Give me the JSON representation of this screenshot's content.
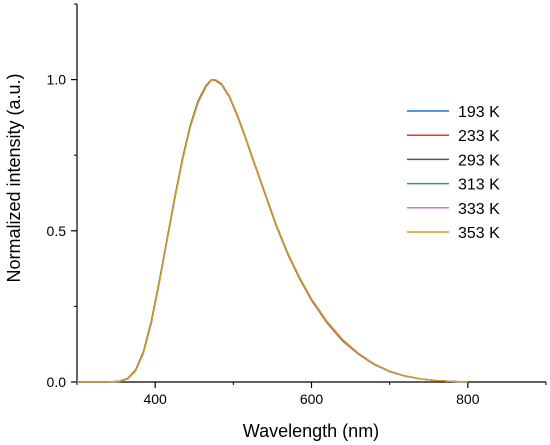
{
  "chart_data": {
    "type": "line",
    "title": "",
    "xlabel": "Wavelength (nm)",
    "ylabel": "Normalized intensity (a.u.)",
    "xlim": [
      300,
      900
    ],
    "ylim": [
      0,
      1.25
    ],
    "xticks": [
      400,
      600,
      800
    ],
    "xtick_labels": [
      "400",
      "600",
      "800"
    ],
    "yticks": [
      0,
      0.5,
      1.0
    ],
    "ytick_labels": [
      "0.0",
      "0.5",
      "1.0"
    ],
    "grid": false,
    "legend_position": "right",
    "x": [
      300,
      340,
      355,
      365,
      375,
      385,
      395,
      405,
      415,
      425,
      435,
      445,
      455,
      465,
      472,
      477,
      485,
      495,
      505,
      515,
      525,
      540,
      555,
      570,
      585,
      600,
      620,
      640,
      660,
      680,
      700,
      720,
      740,
      760,
      780,
      800
    ],
    "series": [
      {
        "name": "193 K",
        "color": "#1f77d4",
        "values": [
          0.0,
          0.0,
          0.003,
          0.012,
          0.04,
          0.1,
          0.2,
          0.33,
          0.47,
          0.61,
          0.74,
          0.85,
          0.93,
          0.98,
          1.0,
          0.998,
          0.985,
          0.945,
          0.885,
          0.815,
          0.74,
          0.63,
          0.52,
          0.425,
          0.345,
          0.275,
          0.2,
          0.14,
          0.095,
          0.06,
          0.036,
          0.02,
          0.01,
          0.005,
          0.002,
          0.0
        ]
      },
      {
        "name": "233 K",
        "color": "#e3342f",
        "values": [
          0.0,
          0.0,
          0.003,
          0.012,
          0.04,
          0.1,
          0.2,
          0.33,
          0.47,
          0.61,
          0.74,
          0.85,
          0.93,
          0.98,
          1.0,
          0.997,
          0.983,
          0.942,
          0.88,
          0.81,
          0.735,
          0.625,
          0.515,
          0.42,
          0.34,
          0.27,
          0.195,
          0.135,
          0.092,
          0.058,
          0.034,
          0.019,
          0.01,
          0.005,
          0.002,
          0.0
        ]
      },
      {
        "name": "293 K",
        "color": "#555555",
        "values": [
          0.0,
          0.0,
          0.003,
          0.011,
          0.039,
          0.098,
          0.198,
          0.328,
          0.468,
          0.608,
          0.738,
          0.848,
          0.928,
          0.978,
          0.999,
          0.998,
          0.984,
          0.943,
          0.882,
          0.812,
          0.737,
          0.627,
          0.517,
          0.422,
          0.342,
          0.272,
          0.197,
          0.137,
          0.093,
          0.059,
          0.035,
          0.019,
          0.01,
          0.005,
          0.002,
          0.0
        ]
      },
      {
        "name": "313 K",
        "color": "#2ca05a",
        "values": [
          0.0,
          0.0,
          0.003,
          0.011,
          0.038,
          0.097,
          0.196,
          0.326,
          0.466,
          0.606,
          0.736,
          0.846,
          0.926,
          0.977,
          0.999,
          0.999,
          0.985,
          0.944,
          0.883,
          0.813,
          0.738,
          0.628,
          0.518,
          0.423,
          0.343,
          0.273,
          0.198,
          0.138,
          0.094,
          0.059,
          0.035,
          0.02,
          0.01,
          0.005,
          0.002,
          0.0
        ]
      },
      {
        "name": "333 K",
        "color": "#cc79cc",
        "values": [
          0.0,
          0.0,
          0.002,
          0.01,
          0.037,
          0.095,
          0.194,
          0.324,
          0.464,
          0.604,
          0.734,
          0.844,
          0.925,
          0.976,
          0.998,
          1.0,
          0.986,
          0.945,
          0.884,
          0.814,
          0.739,
          0.629,
          0.519,
          0.424,
          0.344,
          0.274,
          0.199,
          0.139,
          0.094,
          0.06,
          0.035,
          0.02,
          0.01,
          0.005,
          0.002,
          0.0
        ]
      },
      {
        "name": "353 K",
        "color": "#d4a017",
        "values": [
          0.0,
          0.0,
          0.002,
          0.01,
          0.036,
          0.094,
          0.192,
          0.322,
          0.462,
          0.602,
          0.732,
          0.842,
          0.923,
          0.975,
          0.998,
          1.0,
          0.987,
          0.946,
          0.885,
          0.815,
          0.74,
          0.63,
          0.52,
          0.425,
          0.345,
          0.275,
          0.2,
          0.14,
          0.095,
          0.06,
          0.036,
          0.02,
          0.01,
          0.005,
          0.002,
          0.0
        ]
      }
    ]
  }
}
